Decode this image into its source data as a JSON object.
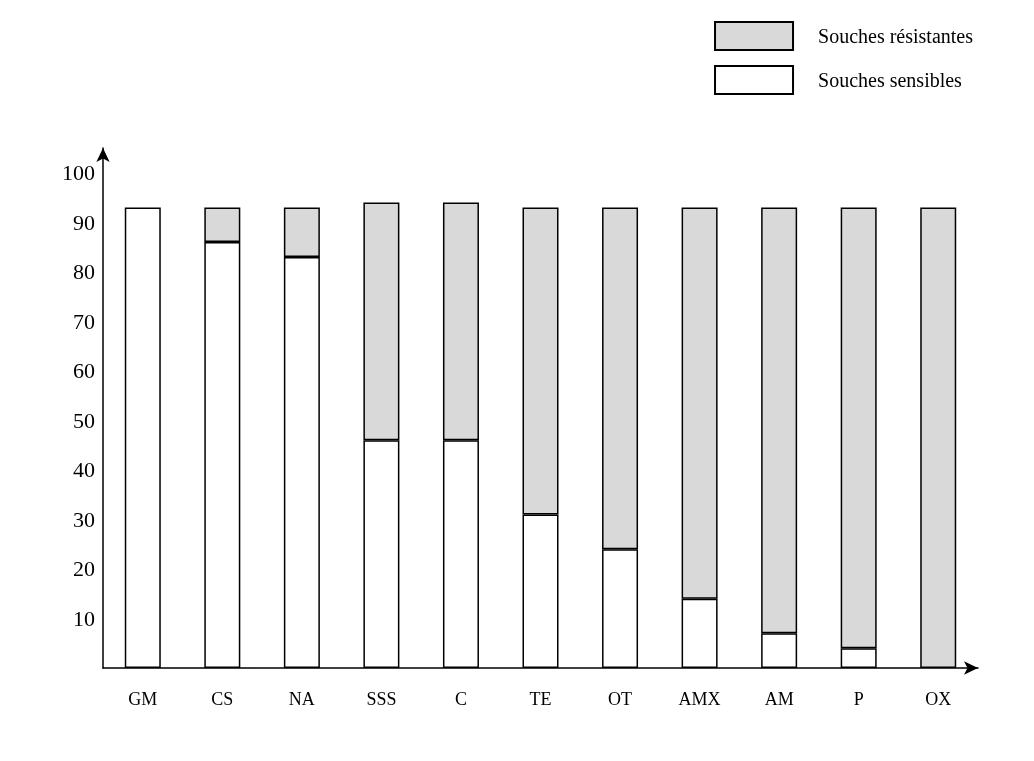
{
  "chart_data": {
    "type": "bar",
    "stacked": true,
    "categories": [
      "GM",
      "CS",
      "NA",
      "SSS",
      "C",
      "TE",
      "OT",
      "AMX",
      "AM",
      "P",
      "OX"
    ],
    "series": [
      {
        "name": "Souches sensibles",
        "color": "#ffffff",
        "values": [
          93,
          86,
          83,
          46,
          46,
          31,
          24,
          14,
          7,
          4,
          0
        ]
      },
      {
        "name": "Souches résistantes",
        "color": "#d9d9d9",
        "values": [
          0,
          7,
          10,
          48,
          48,
          62,
          69,
          79,
          86,
          89,
          93
        ]
      }
    ],
    "ylim": [
      0,
      105
    ],
    "yticks": [
      10,
      20,
      30,
      40,
      50,
      60,
      70,
      80,
      90,
      100
    ],
    "grid": false,
    "legend": "top right"
  }
}
